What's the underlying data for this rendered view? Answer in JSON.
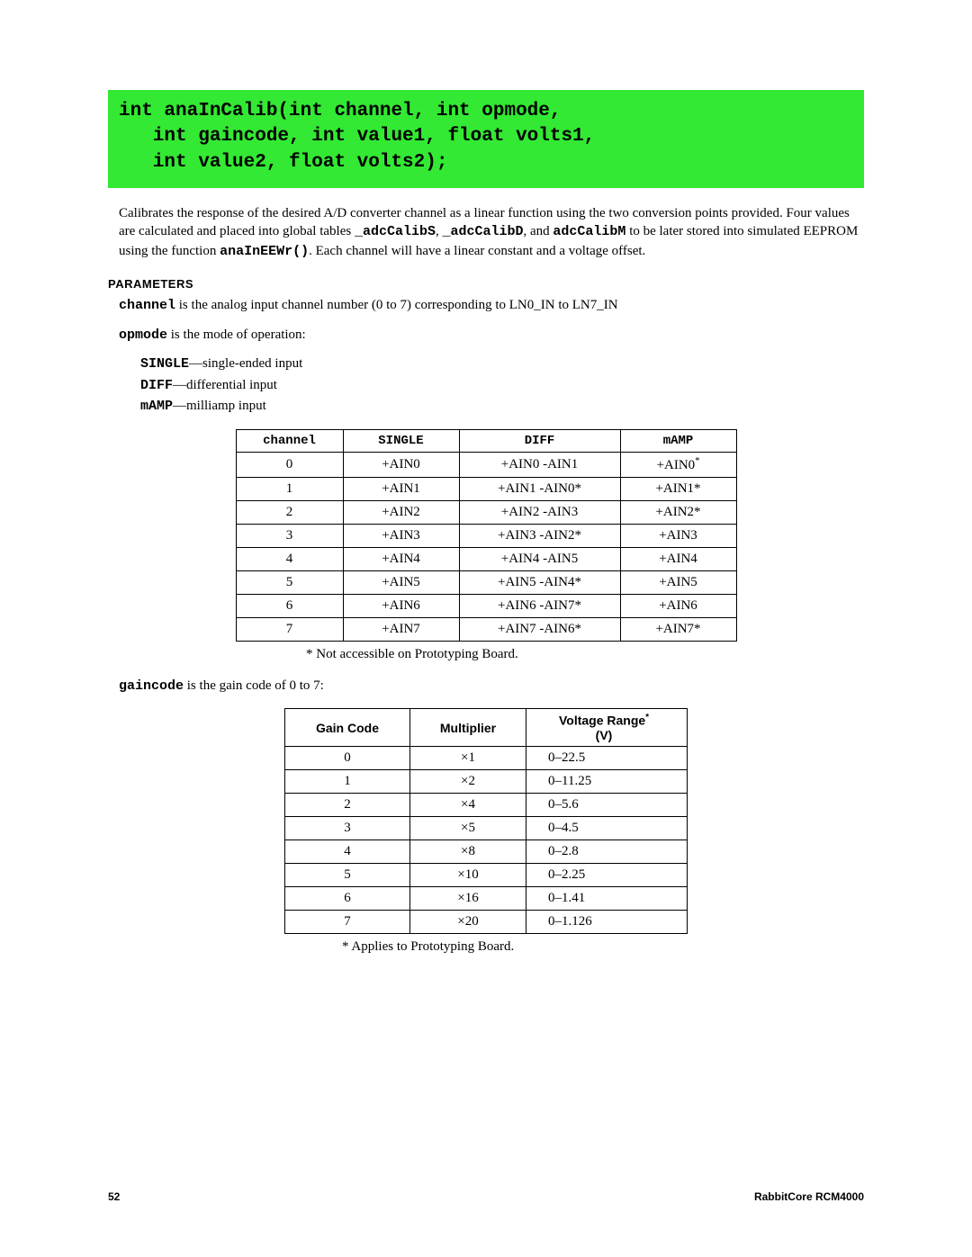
{
  "header_code": "int anaInCalib(int channel, int opmode,\n   int gaincode, int value1, float volts1,\n   int value2, float volts2);",
  "desc_parts": {
    "p1a": "Calibrates the response of the desired A/D converter channel as a linear function using the two conversion points provided. Four values are calculated and placed into global tables ",
    "c1": "_adcCalibS",
    "p1b": ", ",
    "c2": "_adcCalibD",
    "p1c": ", and ",
    "c3": "adcCalibM",
    "p1d": " to be later stored into simulated EEPROM using the function ",
    "c4": "anaInEEWr()",
    "p1e": ". Each channel will have a linear constant and a voltage offset."
  },
  "params_title": "PARAMETERS",
  "param_channel": {
    "name": "channel",
    "text": " is the analog input channel number (0 to 7) corresponding to LN0_IN to LN7_IN"
  },
  "param_opmode": {
    "name": "opmode",
    "text": " is the mode of operation:"
  },
  "opmode_items": [
    {
      "code": "SINGLE",
      "text": "—single-ended input"
    },
    {
      "code": "DIFF",
      "text": "—differential input"
    },
    {
      "code": "mAMP",
      "text": "—milliamp input"
    }
  ],
  "table1": {
    "headers": [
      "channel",
      "SINGLE",
      "DIFF",
      "mAMP"
    ],
    "rows": [
      [
        "0",
        "+AIN0",
        "+AIN0 -AIN1",
        "+AIN0*"
      ],
      [
        "1",
        "+AIN1",
        "+AIN1 -AIN0*",
        "+AIN1*"
      ],
      [
        "2",
        "+AIN2",
        "+AIN2 -AIN3",
        "+AIN2*"
      ],
      [
        "3",
        "+AIN3",
        "+AIN3 -AIN2*",
        "+AIN3"
      ],
      [
        "4",
        "+AIN4",
        "+AIN4 -AIN5",
        "+AIN4"
      ],
      [
        "5",
        "+AIN5",
        "+AIN5 -AIN4*",
        "+AIN5"
      ],
      [
        "6",
        "+AIN6",
        "+AIN6 -AIN7*",
        "+AIN6"
      ],
      [
        "7",
        "+AIN7",
        "+AIN7 -AIN6*",
        "+AIN7*"
      ]
    ],
    "footnote": "* Not accessible on Prototyping Board."
  },
  "param_gaincode": {
    "name": "gaincode",
    "text": " is the gain code of 0 to 7:"
  },
  "table2": {
    "headers": [
      "Gain Code",
      "Multiplier",
      "Voltage Range*\n(V)"
    ],
    "rows": [
      [
        "0",
        "×1",
        "0–22.5"
      ],
      [
        "1",
        "×2",
        "0–11.25"
      ],
      [
        "2",
        "×4",
        "0–5.6"
      ],
      [
        "3",
        "×5",
        "0–4.5"
      ],
      [
        "4",
        "×8",
        "0–2.8"
      ],
      [
        "5",
        "×10",
        "0–2.25"
      ],
      [
        "6",
        "×16",
        "0–1.41"
      ],
      [
        "7",
        "×20",
        "0–1.126"
      ]
    ],
    "footnote": "* Applies to Prototyping Board."
  },
  "footer": {
    "page": "52",
    "doc": "RabbitCore RCM4000"
  }
}
